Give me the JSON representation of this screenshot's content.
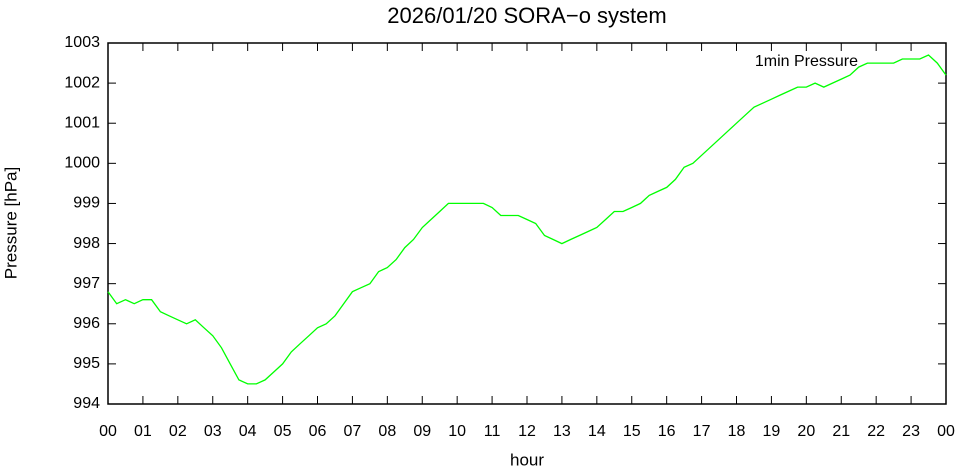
{
  "chart_data": {
    "type": "line",
    "title": "2026/01/20 SORA−o system",
    "x_label": "hour",
    "y_label": "Pressure [hPa]",
    "x": [
      0,
      0.25,
      0.5,
      0.75,
      1,
      1.25,
      1.5,
      1.75,
      2,
      2.25,
      2.5,
      2.75,
      3,
      3.25,
      3.5,
      3.75,
      4,
      4.25,
      4.5,
      4.75,
      5,
      5.25,
      5.5,
      5.75,
      6,
      6.25,
      6.5,
      6.75,
      7,
      7.25,
      7.5,
      7.75,
      8,
      8.25,
      8.5,
      8.75,
      9,
      9.25,
      9.5,
      9.75,
      10,
      10.25,
      10.5,
      10.75,
      11,
      11.25,
      11.5,
      11.75,
      12,
      12.25,
      12.5,
      12.75,
      13,
      13.25,
      13.5,
      13.75,
      14,
      14.25,
      14.5,
      14.75,
      15,
      15.25,
      15.5,
      15.75,
      16,
      16.25,
      16.5,
      16.75,
      17,
      17.25,
      17.5,
      17.75,
      18,
      18.25,
      18.5,
      18.75,
      19,
      19.25,
      19.5,
      19.75,
      20,
      20.25,
      20.5,
      20.75,
      21,
      21.25,
      21.5,
      21.75,
      22,
      22.25,
      22.5,
      22.75,
      23,
      23.25,
      23.5,
      23.75,
      24
    ],
    "series": [
      {
        "name": "1min Pressure",
        "color": "#00ff00",
        "values": [
          996.8,
          996.5,
          996.6,
          996.5,
          996.6,
          996.6,
          996.3,
          996.2,
          996.1,
          996.0,
          996.1,
          995.9,
          995.7,
          995.4,
          995.0,
          994.6,
          994.5,
          994.5,
          994.6,
          994.8,
          995.0,
          995.3,
          995.5,
          995.7,
          995.9,
          996.0,
          996.2,
          996.5,
          996.8,
          996.9,
          997.0,
          997.3,
          997.4,
          997.6,
          997.9,
          998.1,
          998.4,
          998.6,
          998.8,
          999.0,
          999.0,
          999.0,
          999.0,
          999.0,
          998.9,
          998.7,
          998.7,
          998.7,
          998.6,
          998.5,
          998.2,
          998.1,
          998.0,
          998.1,
          998.2,
          998.3,
          998.4,
          998.6,
          998.8,
          998.8,
          998.9,
          999.0,
          999.2,
          999.3,
          999.4,
          999.6,
          999.9,
          1000.0,
          1000.2,
          1000.4,
          1000.6,
          1000.8,
          1001.0,
          1001.2,
          1001.4,
          1001.5,
          1001.6,
          1001.7,
          1001.8,
          1001.9,
          1001.9,
          1002.0,
          1001.9,
          1002.0,
          1002.1,
          1002.2,
          1002.4,
          1002.5,
          1002.5,
          1002.5,
          1002.5,
          1002.6,
          1002.6,
          1002.6,
          1002.7,
          1002.5,
          1002.2
        ]
      }
    ],
    "xlim": [
      0,
      24
    ],
    "xticks": [
      {
        "value": 0,
        "label": "00"
      },
      {
        "value": 1,
        "label": "01"
      },
      {
        "value": 2,
        "label": "02"
      },
      {
        "value": 3,
        "label": "03"
      },
      {
        "value": 4,
        "label": "04"
      },
      {
        "value": 5,
        "label": "05"
      },
      {
        "value": 6,
        "label": "06"
      },
      {
        "value": 7,
        "label": "07"
      },
      {
        "value": 8,
        "label": "08"
      },
      {
        "value": 9,
        "label": "09"
      },
      {
        "value": 10,
        "label": "10"
      },
      {
        "value": 11,
        "label": "11"
      },
      {
        "value": 12,
        "label": "12"
      },
      {
        "value": 13,
        "label": "13"
      },
      {
        "value": 14,
        "label": "14"
      },
      {
        "value": 15,
        "label": "15"
      },
      {
        "value": 16,
        "label": "16"
      },
      {
        "value": 17,
        "label": "17"
      },
      {
        "value": 18,
        "label": "18"
      },
      {
        "value": 19,
        "label": "19"
      },
      {
        "value": 20,
        "label": "20"
      },
      {
        "value": 21,
        "label": "21"
      },
      {
        "value": 22,
        "label": "22"
      },
      {
        "value": 23,
        "label": "23"
      },
      {
        "value": 24,
        "label": "00"
      }
    ],
    "ylim": [
      994,
      1003
    ],
    "yticks": [
      994,
      995,
      996,
      997,
      998,
      999,
      1000,
      1001,
      1002,
      1003
    ],
    "legend_position": "top-right"
  }
}
